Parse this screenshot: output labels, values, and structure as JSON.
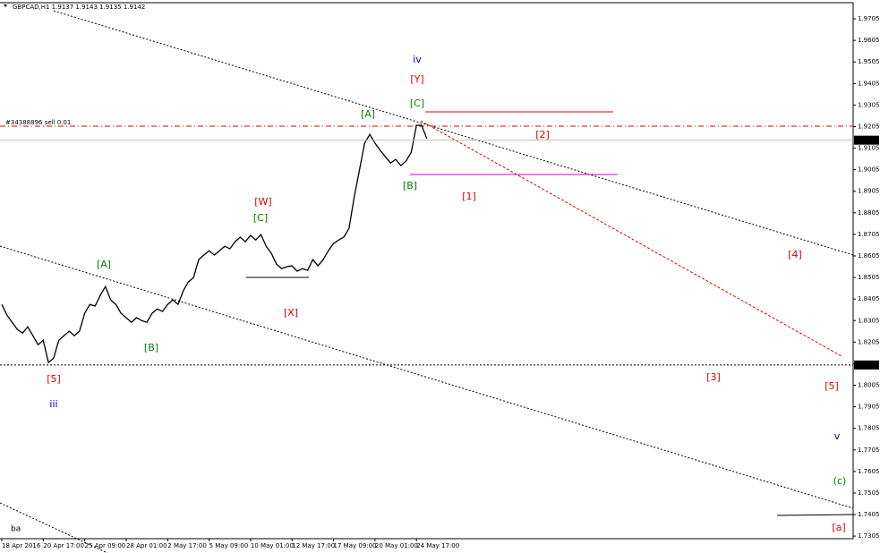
{
  "chart_data": {
    "type": "line",
    "header": "GBPCAD,H1  1.9137 1.9143 1.9135 1.9142",
    "order_label": "#34388896 sell 0.01",
    "corner_label": "ba",
    "categories": [
      "18 Apr 2016",
      null,
      null,
      null,
      null,
      null,
      null,
      null,
      "20 Apr 17:00",
      null,
      null,
      null,
      null,
      null,
      null,
      null,
      "25 Apr 09:00",
      null,
      null,
      null,
      null,
      null,
      null,
      null,
      "28 Apr 01:00",
      null,
      null,
      null,
      null,
      null,
      null,
      null,
      "2 May 17:00",
      null,
      null,
      null,
      null,
      null,
      null,
      null,
      "5 May 09:00",
      null,
      null,
      null,
      null,
      null,
      null,
      null,
      "10 May 01:00",
      null,
      null,
      null,
      null,
      null,
      null,
      null,
      "12 May 17:00",
      null,
      null,
      null,
      null,
      null,
      null,
      null,
      "17 May 09:00",
      null,
      null,
      null,
      null,
      null,
      null,
      null,
      "20 May 01:00",
      null,
      null,
      null,
      null,
      null,
      null,
      null,
      "24 May 17:00",
      null,
      null
    ],
    "values": [
      1.838,
      1.833,
      1.8297,
      1.8264,
      1.8247,
      1.8276,
      1.8235,
      1.8193,
      1.8214,
      1.811,
      1.8131,
      1.8214,
      1.8235,
      1.8256,
      1.8235,
      1.8256,
      1.8339,
      1.838,
      1.8372,
      1.8422,
      1.8463,
      1.8401,
      1.838,
      1.8339,
      1.8318,
      1.8297,
      1.8318,
      1.8305,
      1.8297,
      1.8339,
      1.8359,
      1.8347,
      1.838,
      1.8401,
      1.838,
      1.8443,
      1.8484,
      1.8505,
      1.8588,
      1.8609,
      1.8629,
      1.8609,
      1.8629,
      1.865,
      1.8638,
      1.8671,
      1.8692,
      1.8671,
      1.87,
      1.8679,
      1.8704,
      1.865,
      1.8617,
      1.8567,
      1.8546,
      1.8555,
      1.8559,
      1.8534,
      1.8546,
      1.8538,
      1.8588,
      1.8559,
      1.8588,
      1.8629,
      1.8663,
      1.8679,
      1.8692,
      1.8733,
      1.8879,
      1.9003,
      1.9128,
      1.9169,
      1.9128,
      1.9095,
      1.9065,
      1.9036,
      1.9053,
      1.9024,
      1.9045,
      1.9086,
      1.9211,
      1.9211,
      1.9149
    ],
    "color": "#000000",
    "ylim": [
      1.7293,
      1.978
    ],
    "yticks": [
      1.7305,
      1.7405,
      1.7505,
      1.7605,
      1.7705,
      1.7805,
      1.7905,
      1.8005,
      1.8105,
      1.8205,
      1.8305,
      1.8405,
      1.8505,
      1.8605,
      1.8705,
      1.8805,
      1.8905,
      1.9005,
      1.9105,
      1.9205,
      1.9305,
      1.9405,
      1.9505,
      1.9605,
      1.9705
    ],
    "price_lines": [
      {
        "value": 1.9142,
        "color": "#c0c0c0"
      },
      {
        "value": 1.8099,
        "color": "#000000"
      }
    ],
    "waves": [
      {
        "text": "iv",
        "color": "#0000cc"
      },
      {
        "text": "[Y]",
        "color": "#e00000"
      },
      {
        "text": "[C]",
        "color": "#008000"
      },
      {
        "text": "[A]",
        "color": "#008000"
      },
      {
        "text": "[2]",
        "color": "#e00000"
      },
      {
        "text": "[B]",
        "color": "#008000"
      },
      {
        "text": "[1]",
        "color": "#e00000"
      },
      {
        "text": "[W]",
        "color": "#e00000"
      },
      {
        "text": "[C]",
        "color": "#008000"
      },
      {
        "text": "[4]",
        "color": "#e00000"
      },
      {
        "text": "[A]",
        "color": "#008000"
      },
      {
        "text": "[X]",
        "color": "#e00000"
      },
      {
        "text": "[B]",
        "color": "#008000"
      },
      {
        "text": "[3]",
        "color": "#e00000"
      },
      {
        "text": "[5]",
        "color": "#e00000"
      },
      {
        "text": "[5]",
        "color": "#e00000"
      },
      {
        "text": "iii",
        "color": "#0000cc"
      },
      {
        "text": "v",
        "color": "#0000cc"
      },
      {
        "text": "(c)",
        "color": "#008000"
      },
      {
        "text": "[a]",
        "color": "#e00000"
      }
    ]
  }
}
